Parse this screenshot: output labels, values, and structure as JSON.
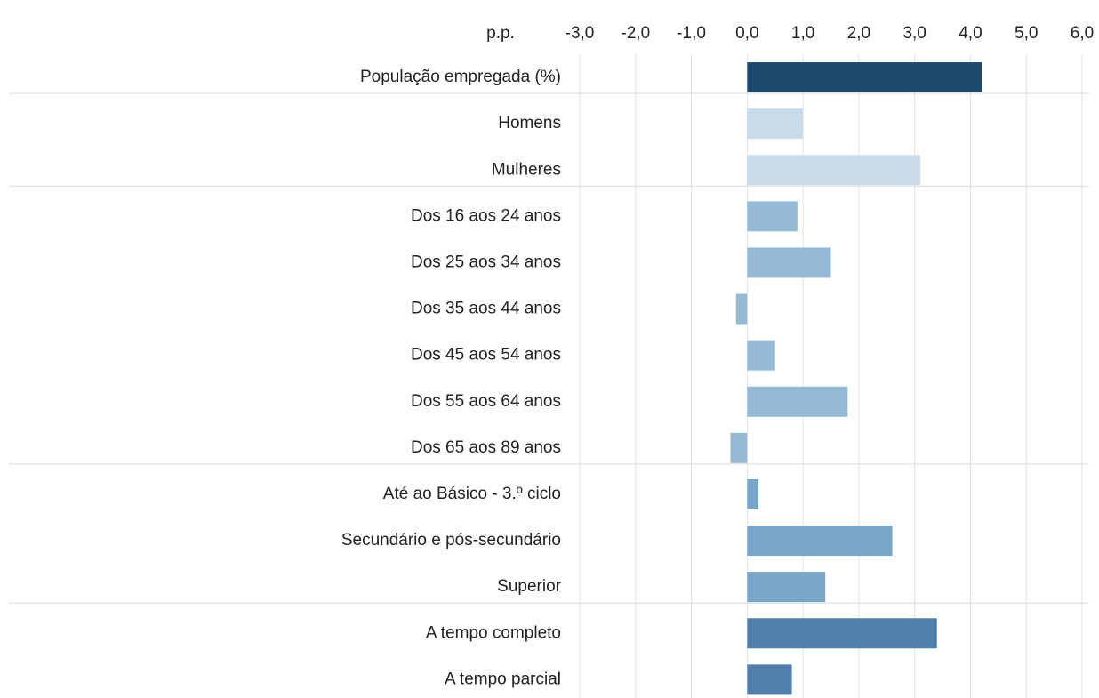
{
  "chart_data": {
    "type": "barh",
    "xlabel": "p.p.",
    "categories": [
      "População empregada (%)",
      "Homens",
      "Mulheres",
      "Dos 16 aos 24 anos",
      "Dos 25 aos 34 anos",
      "Dos 35 aos 44 anos",
      "Dos 45 aos 54 anos",
      "Dos 55 aos 64 anos",
      "Dos 65 aos 89 anos",
      "Até ao Básico - 3.º ciclo",
      "Secundário e pós-secundário",
      "Superior",
      "A tempo completo",
      "A tempo parcial"
    ],
    "values": [
      4.2,
      1.0,
      3.1,
      0.9,
      1.5,
      -0.2,
      0.5,
      1.8,
      -0.3,
      0.2,
      2.6,
      1.4,
      3.4,
      0.8
    ],
    "colors": [
      "#1d4a6e",
      "#c9dbe8",
      "#c9dbe8",
      "#95bad6",
      "#95bad6",
      "#95bad6",
      "#95bad6",
      "#95bad6",
      "#95bad6",
      "#77a6c9",
      "#77a6c9",
      "#77a6c9",
      "#507fac",
      "#507fac"
    ],
    "xlim": [
      -3,
      6
    ],
    "xticks": [
      {
        "value": -3,
        "label": "-3,0"
      },
      {
        "value": -2,
        "label": "-2,0"
      },
      {
        "value": -1,
        "label": "-1,0"
      },
      {
        "value": 0,
        "label": "0,0"
      },
      {
        "value": 1,
        "label": "1,0"
      },
      {
        "value": 2,
        "label": "2,0"
      },
      {
        "value": 3,
        "label": "3,0"
      },
      {
        "value": 4,
        "label": "4,0"
      },
      {
        "value": 5,
        "label": "5,0"
      },
      {
        "value": 6,
        "label": "6,0"
      }
    ],
    "grid": true
  }
}
